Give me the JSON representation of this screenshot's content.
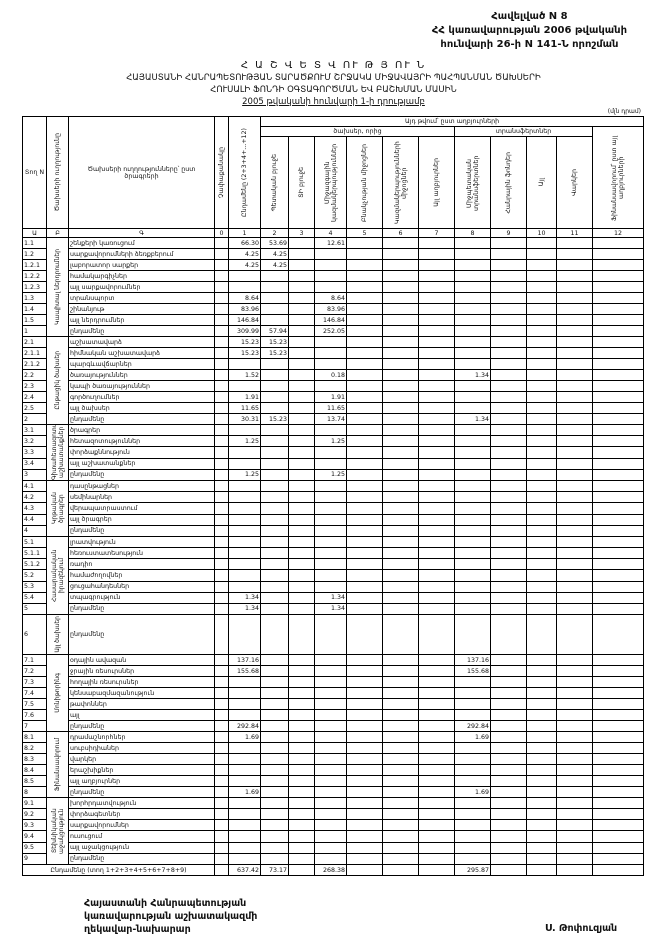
{
  "header": {
    "lines": [
      "Հավելված N 8",
      "ՀՀ կառավարության 2006 թվականի",
      "հունվարի 26-ի N 141-Ն որոշման"
    ]
  },
  "title": {
    "lines": [
      "Հ Ա Շ Վ Ե Տ Վ ՈՒ Թ Յ ՈՒ Ն",
      "ՀԱՅԱՍՏԱՆԻ ՀԱՆՐԱՊԵՏՈՒԹՅԱՆ ՏԱՐԱԾՔՈՒՄ ՇՐՋԱԿԱ ՄԻՋԱՎԱՅՐԻ ՊԱՀՊԱՆՄԱՆ ԾԱԽՍԵՐԻ",
      "ՀՈՒՍԱԼԻ ՖՈՆԴԻ ՕԳՏԱԳՈՐԾՄԱՆ ԵՎ ԲԱՇԽՄԱՆ ՄԱՍԻՆ",
      "2005 թվականի հունվարի 1-ի դրությամբ"
    ]
  },
  "unit_note": "(մլն դրամ)",
  "table": {
    "head": {
      "code": "Տող N",
      "group": "Ծախսերի ուղղությունը",
      "name": "Ծախսերի ուղղությունները՝ ըստ ծրագրերի",
      "col0": "Չափաքանակը",
      "col1": "Ընդամենը (2+3+4+...+12)",
      "span": "Այդ թվում՝ ըստ աղբյուրների",
      "sub_a": "ծախսեր, որից",
      "sub_b": "տրանսֆերտներ",
      "cols": [
        "Պետական բյուջե",
        "ՏԻ բյուջե",
        "Միջազգային կազմակերպություններ",
        "Բնակչության միջոցներ",
        "Կազմակերպությունների միջոցներ",
        "Այլ աղբյուրներ",
        "Միջպետական տրանսֆերտներ",
        "Հանրային ֆոնդեր",
        "Այլ",
        "Վարկեր",
        "Ֆինանսավորում՝ ըստ այլ աղբյուրների"
      ]
    },
    "col_numbers": [
      "Ա",
      "Բ",
      "Գ",
      "0",
      "1",
      "2",
      "3",
      "4",
      "5",
      "6",
      "7",
      "8",
      "9",
      "10",
      "11",
      "12"
    ],
    "groups": [
      {
        "label": "Կապիտալ ներդրումներ",
        "rows": [
          {
            "code": "1.1",
            "name": "շենքերի կառուցում",
            "values": {
              "1": "66.30",
              "2": "53.69",
              "4": "12.61"
            }
          },
          {
            "code": "1.2",
            "name": "սարքավորումների ձեռքբերում",
            "values": {
              "1": "4.25",
              "2": "4.25"
            }
          },
          {
            "code": "1.2.1",
            "name": "լաբորատոր սարքեր",
            "values": {
              "1": "4.25",
              "2": "4.25"
            }
          },
          {
            "code": "1.2.2",
            "name": "համակարգիչներ",
            "values": {}
          },
          {
            "code": "1.2.3",
            "name": "այլ սարքավորումներ",
            "values": {}
          },
          {
            "code": "1.3",
            "name": "տրանսպորտ",
            "values": {
              "1": "8.64",
              "4": "8.64"
            }
          },
          {
            "code": "1.4",
            "name": "շինանյութ",
            "values": {
              "1": "83.96",
              "4": "83.96"
            }
          },
          {
            "code": "1.5",
            "name": "այլ ներդրումներ",
            "values": {
              "1": "146.84",
              "4": "146.84"
            }
          },
          {
            "code": "1",
            "name": "ընդամենը",
            "values": {
              "1": "309.99",
              "2": "57.94",
              "4": "252.05"
            }
          }
        ]
      },
      {
        "label": "Ընթացիկ ծախսեր",
        "rows": [
          {
            "code": "2.1",
            "name": "աշխատավարձ",
            "values": {
              "1": "15.23",
              "2": "15.23"
            }
          },
          {
            "code": "2.1.1",
            "name": "հիմնական աշխատավարձ",
            "values": {
              "1": "15.23",
              "2": "15.23"
            }
          },
          {
            "code": "2.1.2",
            "name": "պարգևավճարներ",
            "values": {}
          },
          {
            "code": "2.2",
            "name": "ծառայություններ",
            "values": {
              "1": "1.52",
              "4": "0.18",
              "8": "1.34"
            }
          },
          {
            "code": "2.3",
            "name": "կապի ծառայություններ",
            "values": {}
          },
          {
            "code": "2.4",
            "name": "գործուղումներ",
            "values": {
              "1": "1.91",
              "4": "1.91"
            }
          },
          {
            "code": "2.5",
            "name": "այլ ծախսեր",
            "values": {
              "1": "11.65",
              "4": "11.65"
            }
          },
          {
            "code": "2",
            "name": "ընդամենը",
            "values": {
              "1": "30.31",
              "2": "15.23",
              "4": "13.74",
              "8": "1.34"
            }
          }
        ]
      },
      {
        "label": "Գիտահետազոտական աշխատանքներ",
        "rows": [
          {
            "code": "3.1",
            "name": "ծրագրեր",
            "values": {}
          },
          {
            "code": "3.2",
            "name": "հետազոտություններ",
            "values": {
              "1": "1.25",
              "4": "1.25"
            }
          },
          {
            "code": "3.3",
            "name": "փորձաքննություն",
            "values": {}
          },
          {
            "code": "3.4",
            "name": "այլ աշխատանքներ",
            "values": {}
          },
          {
            "code": "3",
            "name": "ընդամենը",
            "values": {
              "1": "1.25",
              "4": "1.25"
            }
          }
        ]
      },
      {
        "label": "Կրթական ծրագրեր",
        "rows": [
          {
            "code": "4.1",
            "name": "դասընթացներ",
            "values": {}
          },
          {
            "code": "4.2",
            "name": "սեմինարներ",
            "values": {}
          },
          {
            "code": "4.3",
            "name": "վերապատրաստում",
            "values": {}
          },
          {
            "code": "4.4",
            "name": "այլ ծրագրեր",
            "values": {}
          },
          {
            "code": "4",
            "name": "ընդամենը",
            "values": {}
          }
        ]
      },
      {
        "label": "Հասարակական իրազեկում",
        "rows": [
          {
            "code": "5.1",
            "name": "լրատվություն",
            "values": {}
          },
          {
            "code": "5.1.1",
            "name": "հեռուստատեսություն",
            "values": {}
          },
          {
            "code": "5.1.2",
            "name": "ռադիո",
            "values": {}
          },
          {
            "code": "5.2",
            "name": "համաժողովներ",
            "values": {}
          },
          {
            "code": "5.3",
            "name": "ցուցահանդեսներ",
            "values": {}
          },
          {
            "code": "5.4",
            "name": "տպագրություն",
            "values": {
              "1": "1.34",
              "4": "1.34"
            }
          },
          {
            "code": "5",
            "name": "ընդամենը",
            "values": {
              "1": "1.34",
              "4": "1.34"
            }
          }
        ]
      },
      {
        "label": "Այլ ծախսեր",
        "rows": [
          {
            "code": "6",
            "name": "ընդամենը",
            "values": {}
          }
        ]
      },
      {
        "label": "Մոնիթորինգ",
        "rows": [
          {
            "code": "7.1",
            "name": "օդային ավազան",
            "values": {
              "1": "137.16",
              "8": "137.16"
            }
          },
          {
            "code": "7.2",
            "name": "ջրային ռեսուրսներ",
            "values": {
              "1": "155.68",
              "8": "155.68"
            }
          },
          {
            "code": "7.3",
            "name": "հողային ռեսուրսներ",
            "values": {}
          },
          {
            "code": "7.4",
            "name": "կենսաբազմազանություն",
            "values": {}
          },
          {
            "code": "7.5",
            "name": "թափոններ",
            "values": {}
          },
          {
            "code": "7.6",
            "name": "այլ",
            "values": {}
          },
          {
            "code": "7",
            "name": "ընդամենը",
            "values": {
              "1": "292.84",
              "8": "292.84"
            }
          }
        ]
      },
      {
        "label": "Ֆինանսավորում",
        "rows": [
          {
            "code": "8.1",
            "name": "դրամաշնորհներ",
            "values": {
              "1": "1.69",
              "8": "1.69"
            }
          },
          {
            "code": "8.2",
            "name": "սուբսիդիաներ",
            "values": {}
          },
          {
            "code": "8.3",
            "name": "վարկեր",
            "values": {}
          },
          {
            "code": "8.4",
            "name": "երաշխիքներ",
            "values": {}
          },
          {
            "code": "8.5",
            "name": "այլ աղբյուրներ",
            "values": {}
          },
          {
            "code": "8",
            "name": "ընդամենը",
            "values": {
              "1": "1.69",
              "8": "1.69"
            }
          }
        ]
      },
      {
        "label": "Տեխնիկական աջակցություն",
        "rows": [
          {
            "code": "9.1",
            "name": "խորհրդատվություն",
            "values": {}
          },
          {
            "code": "9.2",
            "name": "փորձագետներ",
            "values": {}
          },
          {
            "code": "9.3",
            "name": "սարքավորումներ",
            "values": {}
          },
          {
            "code": "9.4",
            "name": "ուսուցում",
            "values": {}
          },
          {
            "code": "9.5",
            "name": "այլ աջակցություն",
            "values": {}
          },
          {
            "code": "9",
            "name": "ընդամենը",
            "values": {}
          }
        ]
      }
    ],
    "total": {
      "name": "Ընդամենը (տող 1+2+3+4+5+6+7+8+9)",
      "values": {
        "1": "637.42",
        "2": "73.17",
        "4": "268.38",
        "8": "295.87"
      }
    }
  },
  "footer": {
    "lines": [
      "Հայաստանի Հանրապետության",
      "կառավարության աշխատակազմի",
      "ղեկավար-նախարար"
    ],
    "signature": "Ս. Թոփուզյան"
  }
}
